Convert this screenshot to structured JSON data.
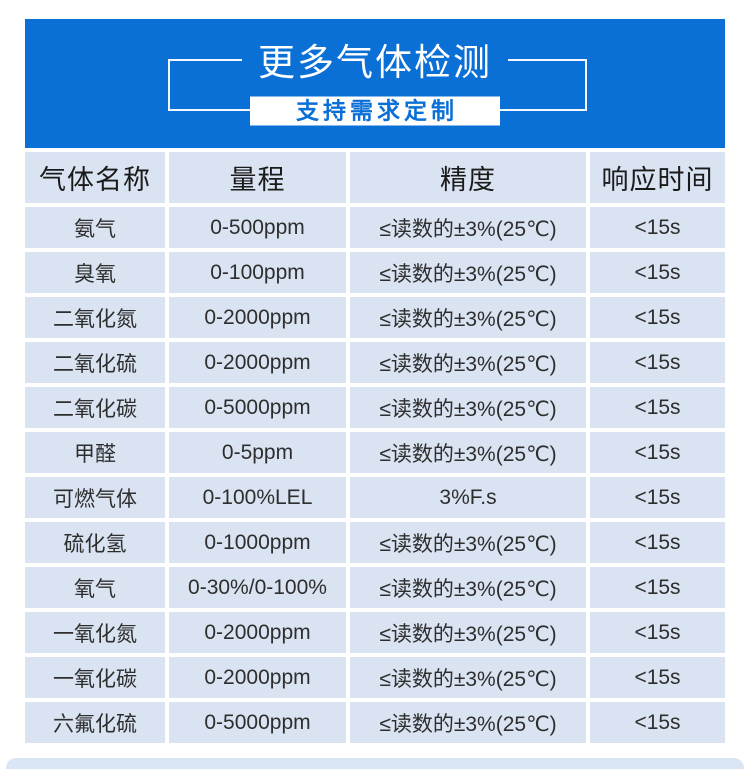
{
  "banner": {
    "title": "更多气体检测",
    "subtitle": "支持需求定制"
  },
  "table": {
    "headers": [
      "气体名称",
      "量程",
      "精度",
      "响应时间"
    ],
    "rows": [
      {
        "name": "氨气",
        "range": "0-500ppm",
        "accuracy": "≤读数的±3%(25℃)",
        "response": "<15s"
      },
      {
        "name": "臭氧",
        "range": "0-100ppm",
        "accuracy": "≤读数的±3%(25℃)",
        "response": "<15s"
      },
      {
        "name": "二氧化氮",
        "range": "0-2000ppm",
        "accuracy": "≤读数的±3%(25℃)",
        "response": "<15s"
      },
      {
        "name": "二氧化硫",
        "range": "0-2000ppm",
        "accuracy": "≤读数的±3%(25℃)",
        "response": "<15s"
      },
      {
        "name": "二氧化碳",
        "range": "0-5000ppm",
        "accuracy": "≤读数的±3%(25℃)",
        "response": "<15s"
      },
      {
        "name": "甲醛",
        "range": "0-5ppm",
        "accuracy": "≤读数的±3%(25℃)",
        "response": "<15s"
      },
      {
        "name": "可燃气体",
        "range": "0-100%LEL",
        "accuracy": "3%F.s",
        "response": "<15s"
      },
      {
        "name": "硫化氢",
        "range": "0-1000ppm",
        "accuracy": "≤读数的±3%(25℃)",
        "response": "<15s"
      },
      {
        "name": "氧气",
        "range": "0-30%/0-100%",
        "accuracy": "≤读数的±3%(25℃)",
        "response": "<15s"
      },
      {
        "name": "一氧化氮",
        "range": "0-2000ppm",
        "accuracy": "≤读数的±3%(25℃)",
        "response": "<15s"
      },
      {
        "name": "一氧化碳",
        "range": "0-2000ppm",
        "accuracy": "≤读数的±3%(25℃)",
        "response": "<15s"
      },
      {
        "name": "六氟化硫",
        "range": "0-5000ppm",
        "accuracy": "≤读数的±3%(25℃)",
        "response": "<15s"
      }
    ]
  },
  "colors": {
    "banner_blue": "#0B70D6",
    "banner_title_text": "#FFFFFF",
    "subtitle_text_blue": "#0B70D6",
    "table_cell_bg": "#D9E3F1",
    "gridline_white": "#FFFFFF",
    "header_text": "#1B1B1B",
    "body_text": "#2E2E2E",
    "bottom_strip": "#DAE6F6"
  }
}
